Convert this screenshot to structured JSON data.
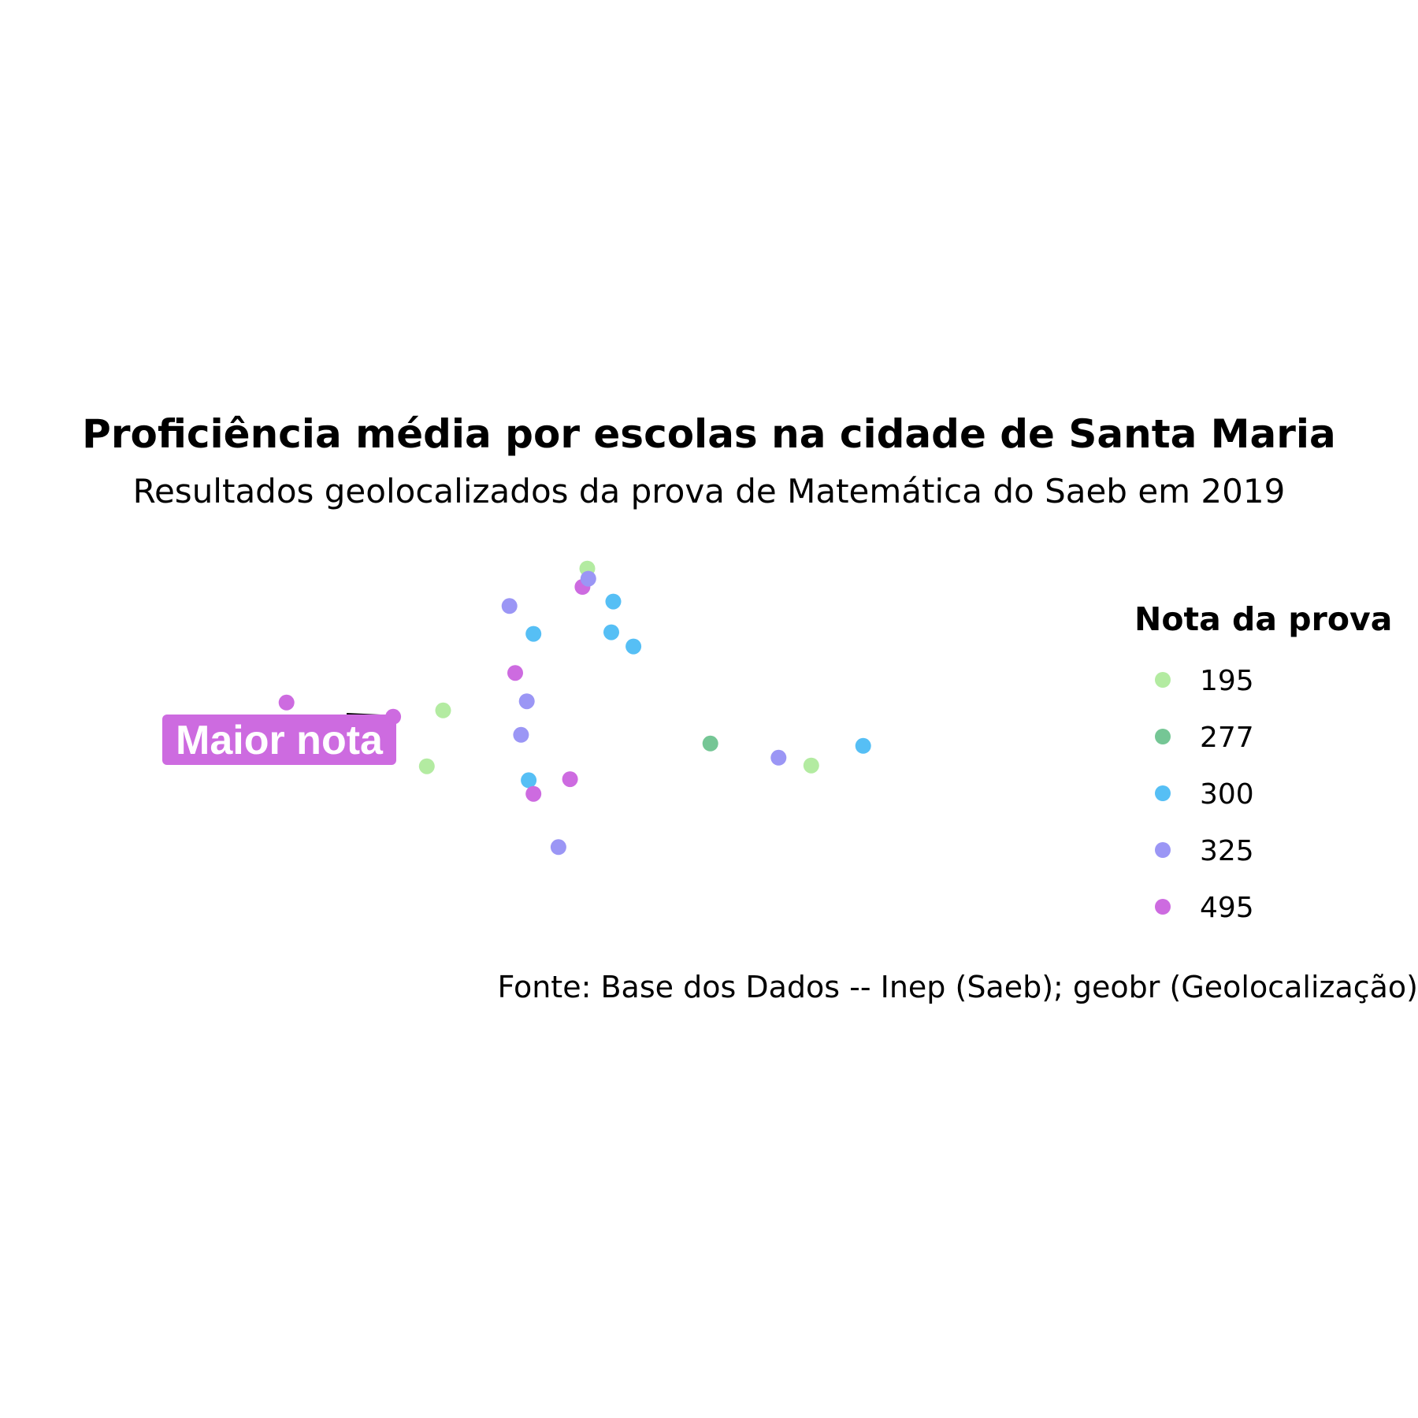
{
  "chart_data": {
    "type": "scatter",
    "title": "Proficiência média por escolas na cidade de Santa Maria",
    "subtitle": "Resultados geolocalizados da prova de Matemática do Saeb em 2019",
    "caption": "Fonte: Base dos Dados -- Inep (Saeb); geobr (Geolocalização)",
    "grid": false,
    "axes_visible": false,
    "legend": {
      "title": "Nota da prova",
      "placement": "right",
      "entries": [
        {
          "label": "195",
          "color": "#b3eba1"
        },
        {
          "label": "277",
          "color": "#75c695"
        },
        {
          "label": "300",
          "color": "#56bff5"
        },
        {
          "label": "325",
          "color": "#9b96f5"
        },
        {
          "label": "495",
          "color": "#cd6be0"
        }
      ]
    },
    "annotation": {
      "text": "Maior nota",
      "color": "#cd6be0",
      "point_index": 1
    },
    "points": [
      {
        "lon": 0.044,
        "lat": 0.534,
        "class": "495"
      },
      {
        "lon": 0.155,
        "lat": 0.588,
        "class": "495"
      },
      {
        "lon": 0.207,
        "lat": 0.564,
        "class": "195"
      },
      {
        "lon": 0.19,
        "lat": 0.777,
        "class": "195"
      },
      {
        "lon": 0.276,
        "lat": 0.166,
        "class": "325"
      },
      {
        "lon": 0.282,
        "lat": 0.421,
        "class": "495"
      },
      {
        "lon": 0.301,
        "lat": 0.272,
        "class": "300"
      },
      {
        "lon": 0.294,
        "lat": 0.529,
        "class": "325"
      },
      {
        "lon": 0.288,
        "lat": 0.657,
        "class": "325"
      },
      {
        "lon": 0.296,
        "lat": 0.83,
        "class": "300"
      },
      {
        "lon": 0.301,
        "lat": 0.882,
        "class": "495"
      },
      {
        "lon": 0.327,
        "lat": 1.085,
        "class": "325"
      },
      {
        "lon": 0.339,
        "lat": 0.826,
        "class": "495"
      },
      {
        "lon": 0.352,
        "lat": 0.093,
        "class": "495"
      },
      {
        "lon": 0.357,
        "lat": 0.023,
        "class": "195"
      },
      {
        "lon": 0.358,
        "lat": 0.062,
        "class": "325"
      },
      {
        "lon": 0.382,
        "lat": 0.266,
        "class": "300"
      },
      {
        "lon": 0.384,
        "lat": 0.149,
        "class": "300"
      },
      {
        "lon": 0.405,
        "lat": 0.32,
        "class": "300"
      },
      {
        "lon": 0.485,
        "lat": 0.69,
        "class": "277"
      },
      {
        "lon": 0.556,
        "lat": 0.744,
        "class": "325"
      },
      {
        "lon": 0.59,
        "lat": 0.774,
        "class": "195"
      },
      {
        "lon": 0.644,
        "lat": 0.699,
        "class": "300"
      }
    ]
  }
}
